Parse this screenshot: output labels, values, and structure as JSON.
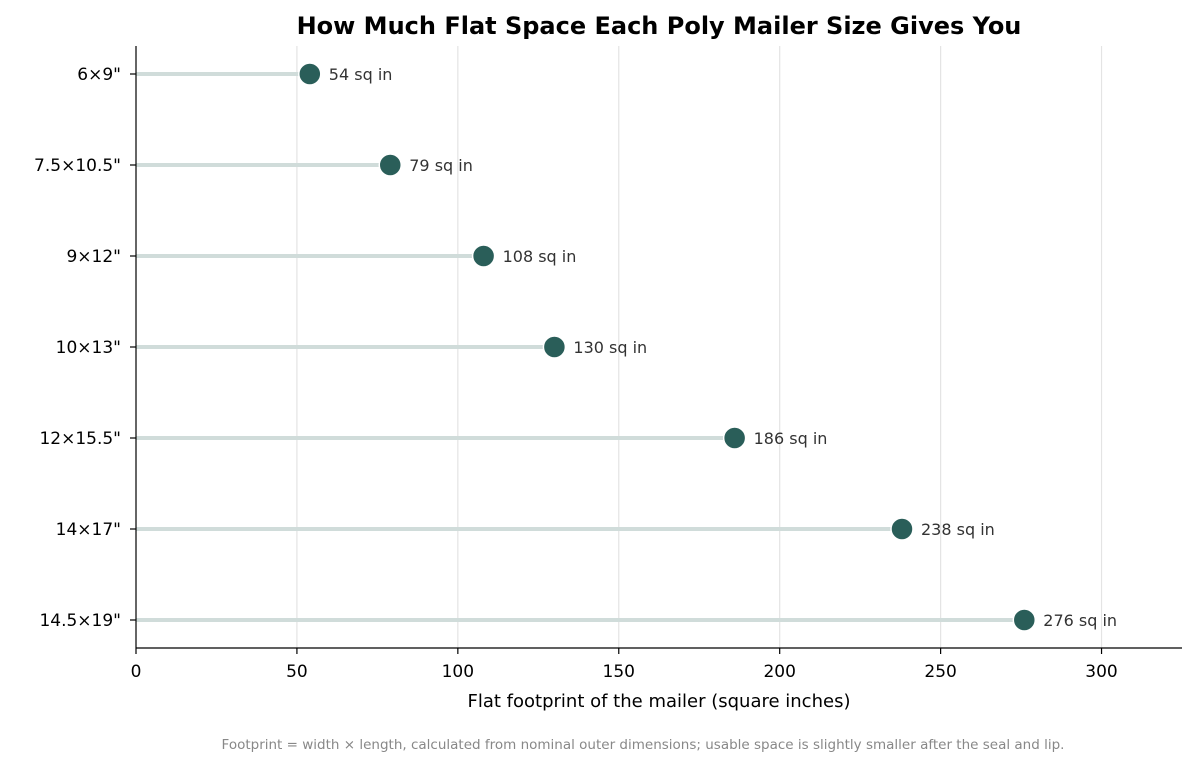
{
  "chart_data": {
    "type": "lollipop",
    "title": "How Much Flat Space Each Poly Mailer Size Gives You",
    "xlabel": "Flat footprint of the mailer (square inches)",
    "ylabel": "",
    "xlim": [
      0,
      325
    ],
    "xticks": [
      0,
      50,
      100,
      150,
      200,
      250,
      300
    ],
    "grid": "vertical",
    "categories": [
      "6×9\"",
      "7.5×10.5\"",
      "9×12\"",
      "10×13\"",
      "12×15.5\"",
      "14×17\"",
      "14.5×19\""
    ],
    "values": [
      54,
      79,
      108,
      130,
      186,
      238,
      276
    ],
    "data_labels": [
      "54 sq in",
      "79 sq in",
      "108 sq in",
      "130 sq in",
      "186 sq in",
      "238 sq in",
      "276 sq in"
    ],
    "footnote": "Footprint = width × length, calculated from nominal outer dimensions; usable space is slightly smaller after the seal and lip.",
    "colors": {
      "marker": "#2a5e59",
      "stem": "#d0dcda",
      "grid": "#e4e4e4",
      "axis": "#000000"
    }
  }
}
